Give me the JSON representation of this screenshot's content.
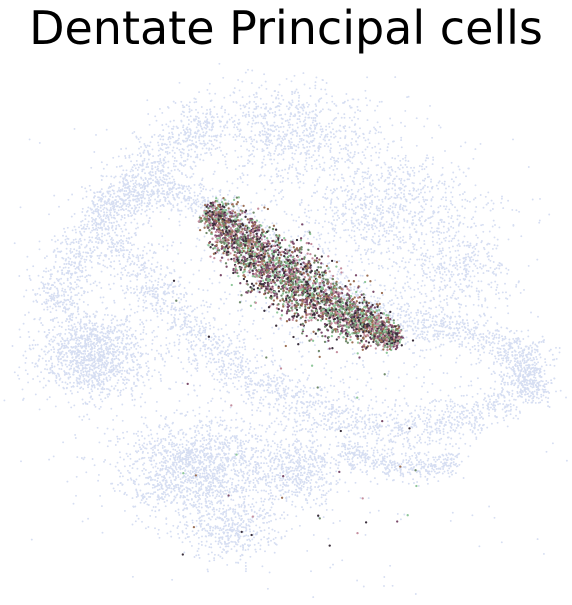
{
  "chart_data": {
    "type": "scatter",
    "title": "Dentate Principal cells",
    "xlabel": "",
    "ylabel": "",
    "axes_visible": false,
    "grid": false,
    "legend": "none",
    "colors": {
      "background_cells": "#d6def2",
      "highlight": [
        "#8fc79a",
        "#9b6f55",
        "#7a4a6a",
        "#3a2f3c",
        "#6f8a6a",
        "#c58f9f"
      ]
    },
    "series": [
      {
        "role": "background",
        "point_count": 12000,
        "regions": [
          {
            "type": "band",
            "path": [
              [
                212,
                118
              ],
              [
                170,
                150
              ],
              [
                118,
                200
              ],
              [
                78,
                258
              ],
              [
                52,
                310
              ]
            ],
            "width": 36,
            "weight": 3
          },
          {
            "type": "band",
            "path": [
              [
                90,
                210
              ],
              [
                150,
                190
              ],
              [
                205,
                200
              ],
              [
                248,
                235
              ],
              [
                290,
                275
              ],
              [
                345,
                300
              ],
              [
                400,
                320
              ],
              [
                455,
                330
              ],
              [
                505,
                345
              ]
            ],
            "width": 24,
            "weight": 4
          },
          {
            "type": "band",
            "path": [
              [
                115,
                240
              ],
              [
                160,
                295
              ],
              [
                210,
                350
              ],
              [
                270,
                390
              ],
              [
                335,
                415
              ],
              [
                400,
                430
              ],
              [
                460,
                420
              ],
              [
                515,
                395
              ],
              [
                538,
                372
              ]
            ],
            "width": 28,
            "weight": 4
          },
          {
            "type": "band",
            "path": [
              [
                505,
                345
              ],
              [
                532,
                362
              ],
              [
                538,
                372
              ],
              [
                525,
                395
              ]
            ],
            "width": 30,
            "weight": 1
          },
          {
            "type": "band",
            "path": [
              [
                340,
                448
              ],
              [
                380,
                462
              ],
              [
                420,
                470
              ],
              [
                460,
                458
              ]
            ],
            "width": 16,
            "weight": 1
          },
          {
            "type": "blob",
            "cx": 92,
            "cy": 355,
            "rx": 55,
            "ry": 42,
            "weight": 3
          },
          {
            "type": "blob",
            "cx": 200,
            "cy": 470,
            "rx": 80,
            "ry": 48,
            "weight": 4
          },
          {
            "type": "blob",
            "cx": 230,
            "cy": 530,
            "rx": 48,
            "ry": 28,
            "weight": 1
          },
          {
            "type": "blob",
            "cx": 300,
            "cy": 470,
            "rx": 42,
            "ry": 38,
            "weight": 1
          },
          {
            "type": "blob",
            "cx": 390,
            "cy": 210,
            "rx": 95,
            "ry": 60,
            "weight": 2
          },
          {
            "type": "blob",
            "cx": 290,
            "cy": 130,
            "rx": 85,
            "ry": 45,
            "weight": 2
          },
          {
            "type": "blob",
            "cx": 460,
            "cy": 270,
            "rx": 55,
            "ry": 45,
            "weight": 1
          },
          {
            "type": "blob",
            "cx": 280,
            "cy": 330,
            "rx": 220,
            "ry": 230,
            "weight": 3
          }
        ]
      },
      {
        "role": "dentate-principal-cells",
        "point_count": 3200,
        "regions": [
          {
            "type": "band",
            "path": [
              [
                208,
                212
              ],
              [
                235,
                232
              ],
              [
                262,
                258
              ],
              [
                292,
                283
              ],
              [
                325,
                303
              ],
              [
                352,
                318
              ],
              [
                378,
                330
              ],
              [
                398,
                341
              ]
            ],
            "width_profile": [
              16,
              30,
              36,
              38,
              36,
              30,
              20,
              10
            ]
          }
        ],
        "scattered": {
          "point_count": 45,
          "region": {
            "x": [
              160,
              420
            ],
            "y": [
              270,
              560
            ]
          }
        }
      }
    ]
  }
}
